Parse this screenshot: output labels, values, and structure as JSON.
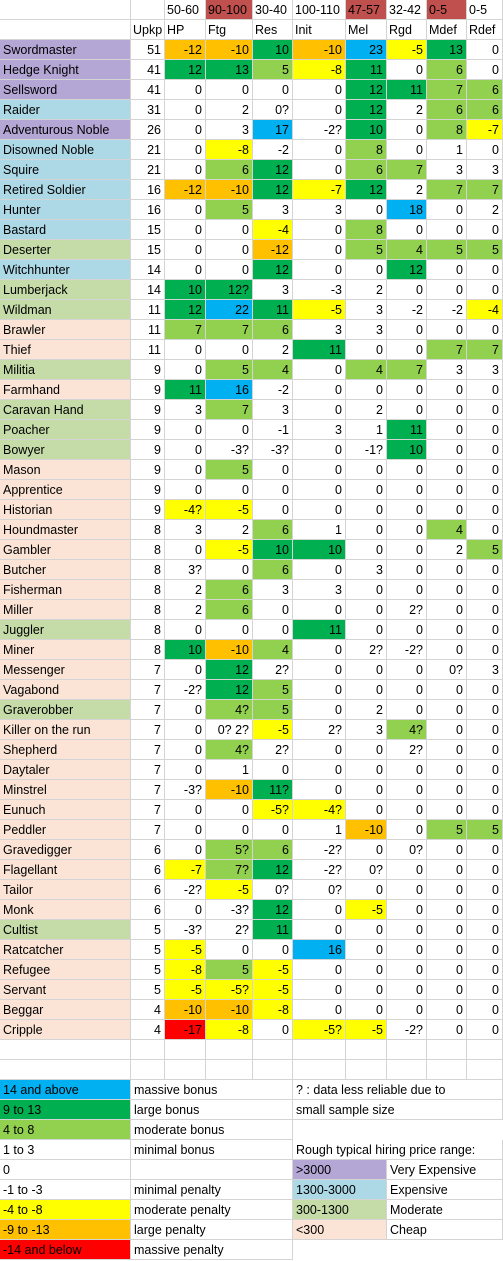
{
  "colors": {
    "purple": "#b4a7d6",
    "blue": "#add8e6",
    "green": "#c5dca9",
    "peach": "#fbe4d5",
    "massive_bonus": "#00b0f0",
    "large_bonus": "#00b050",
    "moderate_bonus": "#92d050",
    "minimal_penalty": "#ffffff",
    "moderate_penalty": "#ffff00",
    "large_penalty": "#ffc000",
    "massive_penalty": "#ff0000",
    "header_red": "#c0504d"
  },
  "ranges": [
    "50-60",
    "90-100",
    "30-40",
    "100-110",
    "47-57",
    "32-42",
    "0-5",
    "0-5"
  ],
  "range_colors": [
    "",
    "header_red",
    "",
    "",
    "header_red",
    "",
    "header_red",
    ""
  ],
  "columns": [
    "Upkp",
    "HP",
    "Ftg",
    "Res",
    "Init",
    "Mel",
    "Rgd",
    "Mdef",
    "Rdef"
  ],
  "rows": [
    {
      "name": "Swordmaster",
      "price": "purple",
      "upkp": "51",
      "vals": [
        "-12",
        "-10",
        "10",
        "-10",
        "23",
        "-5",
        "13",
        "0"
      ]
    },
    {
      "name": "Hedge Knight",
      "price": "purple",
      "upkp": "41",
      "vals": [
        "12",
        "13",
        "5",
        "-8",
        "11",
        "0",
        "6",
        "0"
      ]
    },
    {
      "name": "Sellsword",
      "price": "purple",
      "upkp": "41",
      "vals": [
        "0",
        "0",
        "0",
        "0",
        "12",
        "11",
        "7",
        "6"
      ]
    },
    {
      "name": "Raider",
      "price": "blue",
      "upkp": "31",
      "vals": [
        "0",
        "2",
        "0?",
        "0",
        "12",
        "2",
        "6",
        "6"
      ]
    },
    {
      "name": "Adventurous Noble",
      "price": "purple",
      "upkp": "26",
      "vals": [
        "0",
        "3",
        "17",
        "-2?",
        "10",
        "0",
        "8",
        "-7"
      ]
    },
    {
      "name": "Disowned Noble",
      "price": "blue",
      "upkp": "21",
      "vals": [
        "0",
        "-8",
        "-2",
        "0",
        "8",
        "0",
        "1",
        "0"
      ]
    },
    {
      "name": "Squire",
      "price": "blue",
      "upkp": "21",
      "vals": [
        "0",
        "6",
        "12",
        "0",
        "6",
        "7",
        "3",
        "3"
      ]
    },
    {
      "name": "Retired Soldier",
      "price": "blue",
      "upkp": "16",
      "vals": [
        "-12",
        "-10",
        "12",
        "-7",
        "12",
        "2",
        "7",
        "7"
      ]
    },
    {
      "name": "Hunter",
      "price": "blue",
      "upkp": "16",
      "vals": [
        "0",
        "5",
        "3",
        "3",
        "0",
        "18",
        "0",
        "2"
      ]
    },
    {
      "name": "Bastard",
      "price": "blue",
      "upkp": "15",
      "vals": [
        "0",
        "0",
        "-4",
        "0",
        "8",
        "0",
        "0",
        "0"
      ]
    },
    {
      "name": "Deserter",
      "price": "green",
      "upkp": "15",
      "vals": [
        "0",
        "0",
        "-12",
        "0",
        "5",
        "4",
        "5",
        "5"
      ]
    },
    {
      "name": "Witchhunter",
      "price": "blue",
      "upkp": "14",
      "vals": [
        "0",
        "0",
        "12",
        "0",
        "0",
        "12",
        "0",
        "0"
      ]
    },
    {
      "name": "Lumberjack",
      "price": "green",
      "upkp": "14",
      "vals": [
        "10",
        "12?",
        "3",
        "-3",
        "2",
        "0",
        "0",
        "0"
      ]
    },
    {
      "name": "Wildman",
      "price": "green",
      "upkp": "11",
      "vals": [
        "12",
        "22",
        "11",
        "-5",
        "3",
        "-2",
        "-2",
        "-4"
      ]
    },
    {
      "name": "Brawler",
      "price": "peach",
      "upkp": "11",
      "vals": [
        "7",
        "7",
        "6",
        "3",
        "3",
        "0",
        "0",
        "0"
      ]
    },
    {
      "name": "Thief",
      "price": "peach",
      "upkp": "11",
      "vals": [
        "0",
        "0",
        "2",
        "11",
        "0",
        "0",
        "7",
        "7"
      ]
    },
    {
      "name": "Militia",
      "price": "green",
      "upkp": "9",
      "vals": [
        "0",
        "5",
        "4",
        "0",
        "4",
        "7",
        "3",
        "3"
      ]
    },
    {
      "name": "Farmhand",
      "price": "peach",
      "upkp": "9",
      "vals": [
        "11",
        "16",
        "-2",
        "0",
        "0",
        "0",
        "0",
        "0"
      ]
    },
    {
      "name": "Caravan Hand",
      "price": "green",
      "upkp": "9",
      "vals": [
        "3",
        "7",
        "3",
        "0",
        "2",
        "0",
        "0",
        "0"
      ]
    },
    {
      "name": "Poacher",
      "price": "green",
      "upkp": "9",
      "vals": [
        "0",
        "0",
        "-1",
        "3",
        "1",
        "11",
        "0",
        "0"
      ]
    },
    {
      "name": "Bowyer",
      "price": "green",
      "upkp": "9",
      "vals": [
        "0",
        "-3?",
        "-3?",
        "0",
        "-1?",
        "10",
        "0",
        "0"
      ]
    },
    {
      "name": "Mason",
      "price": "peach",
      "upkp": "9",
      "vals": [
        "0",
        "5",
        "0",
        "0",
        "0",
        "0",
        "0",
        "0"
      ]
    },
    {
      "name": "Apprentice",
      "price": "peach",
      "upkp": "9",
      "vals": [
        "0",
        "0",
        "0",
        "0",
        "0",
        "0",
        "0",
        "0"
      ]
    },
    {
      "name": "Historian",
      "price": "peach",
      "upkp": "9",
      "vals": [
        "-4?",
        "-5",
        "0",
        "0",
        "0",
        "0",
        "0",
        "0"
      ]
    },
    {
      "name": "Houndmaster",
      "price": "peach",
      "upkp": "8",
      "vals": [
        "3",
        "2",
        "6",
        "1",
        "0",
        "0",
        "4",
        "0"
      ]
    },
    {
      "name": "Gambler",
      "price": "peach",
      "upkp": "8",
      "vals": [
        "0",
        "-5",
        "10",
        "10",
        "0",
        "0",
        "2",
        "5"
      ]
    },
    {
      "name": "Butcher",
      "price": "peach",
      "upkp": "8",
      "vals": [
        "3?",
        "0",
        "6",
        "0",
        "3",
        "0",
        "0",
        "0"
      ]
    },
    {
      "name": "Fisherman",
      "price": "peach",
      "upkp": "8",
      "vals": [
        "2",
        "6",
        "3",
        "3",
        "0",
        "0",
        "0",
        "0"
      ]
    },
    {
      "name": "Miller",
      "price": "peach",
      "upkp": "8",
      "vals": [
        "2",
        "6",
        "0",
        "0",
        "0",
        "2?",
        "0",
        "0"
      ]
    },
    {
      "name": "Juggler",
      "price": "green",
      "upkp": "8",
      "vals": [
        "0",
        "0",
        "0",
        "11",
        "0",
        "0",
        "0",
        "0"
      ]
    },
    {
      "name": "Miner",
      "price": "peach",
      "upkp": "8",
      "vals": [
        "10",
        "-10",
        "4",
        "0",
        "2?",
        "-2?",
        "0",
        "0"
      ]
    },
    {
      "name": "Messenger",
      "price": "peach",
      "upkp": "7",
      "vals": [
        "0",
        "12",
        "2?",
        "0",
        "0",
        "0",
        "0?",
        "3"
      ]
    },
    {
      "name": "Vagabond",
      "price": "peach",
      "upkp": "7",
      "vals": [
        "-2?",
        "12",
        "5",
        "0",
        "0",
        "0",
        "0",
        "0"
      ]
    },
    {
      "name": "Graverobber",
      "price": "green",
      "upkp": "7",
      "vals": [
        "0",
        "4?",
        "5",
        "0",
        "2",
        "0",
        "0",
        "0"
      ]
    },
    {
      "name": "Killer on the run",
      "price": "peach",
      "upkp": "7",
      "vals": [
        "0",
        "0? 2?",
        "-5",
        "2?",
        "3",
        "4?",
        "0",
        "0"
      ]
    },
    {
      "name": "Shepherd",
      "price": "peach",
      "upkp": "7",
      "vals": [
        "0",
        "4?",
        "2?",
        "0",
        "0",
        "2?",
        "0",
        "0"
      ]
    },
    {
      "name": "Daytaler",
      "price": "peach",
      "upkp": "7",
      "vals": [
        "0",
        "1",
        "0",
        "0",
        "0",
        "0",
        "0",
        "0"
      ]
    },
    {
      "name": "Minstrel",
      "price": "peach",
      "upkp": "7",
      "vals": [
        "-3?",
        "-10",
        "11?",
        "0",
        "0",
        "0",
        "0",
        "0"
      ]
    },
    {
      "name": "Eunuch",
      "price": "peach",
      "upkp": "7",
      "vals": [
        "0",
        "0",
        "-5?",
        "-4?",
        "0",
        "0",
        "0",
        "0"
      ]
    },
    {
      "name": "Peddler",
      "price": "peach",
      "upkp": "7",
      "vals": [
        "0",
        "0",
        "0",
        "1",
        "-10",
        "0",
        "5",
        "5"
      ]
    },
    {
      "name": "Gravedigger",
      "price": "peach",
      "upkp": "6",
      "vals": [
        "0",
        "5?",
        "6",
        "-2?",
        "0",
        "0?",
        "0",
        "0"
      ]
    },
    {
      "name": "Flagellant",
      "price": "peach",
      "upkp": "6",
      "vals": [
        "-7",
        "7?",
        "12",
        "-2?",
        "0?",
        "0",
        "0",
        "0"
      ]
    },
    {
      "name": "Tailor",
      "price": "peach",
      "upkp": "6",
      "vals": [
        "-2?",
        "-5",
        "0?",
        "0?",
        "0",
        "0",
        "0",
        "0"
      ]
    },
    {
      "name": "Monk",
      "price": "peach",
      "upkp": "6",
      "vals": [
        "0",
        "-3?",
        "12",
        "0",
        "-5",
        "0",
        "0",
        "0"
      ]
    },
    {
      "name": "Cultist",
      "price": "green",
      "upkp": "5",
      "vals": [
        "-3?",
        "2?",
        "11",
        "0",
        "0",
        "0",
        "0",
        "0"
      ]
    },
    {
      "name": "Ratcatcher",
      "price": "peach",
      "upkp": "5",
      "vals": [
        "-5",
        "0",
        "0",
        "16",
        "0",
        "0",
        "0",
        "0"
      ]
    },
    {
      "name": "Refugee",
      "price": "peach",
      "upkp": "5",
      "vals": [
        "-8",
        "5",
        "-5",
        "0",
        "0",
        "0",
        "0",
        "0"
      ]
    },
    {
      "name": "Servant",
      "price": "peach",
      "upkp": "5",
      "vals": [
        "-5",
        "-5?",
        "-5",
        "0",
        "0",
        "0",
        "0",
        "0"
      ]
    },
    {
      "name": "Beggar",
      "price": "peach",
      "upkp": "4",
      "vals": [
        "-10",
        "-10",
        "-8",
        "0",
        "0",
        "0",
        "0",
        "0"
      ]
    },
    {
      "name": "Cripple",
      "price": "peach",
      "upkp": "4",
      "vals": [
        "-17",
        "-8",
        "0",
        "-5?",
        "-5",
        "-2?",
        "0",
        "0"
      ]
    }
  ],
  "legend": {
    "scale": [
      {
        "range": "14 and above",
        "label": "massive bonus",
        "color": "massive_bonus"
      },
      {
        "range": "9 to 13",
        "label": "large bonus",
        "color": "large_bonus"
      },
      {
        "range": "4 to 8",
        "label": "moderate bonus",
        "color": "moderate_bonus"
      },
      {
        "range": "1 to 3",
        "label": "minimal bonus",
        "color": ""
      },
      {
        "range": "0",
        "label": "",
        "color": ""
      },
      {
        "range": "-1 to -3",
        "label": "minimal penalty",
        "color": ""
      },
      {
        "range": "-4 to -8",
        "label": "moderate penalty",
        "color": "moderate_penalty"
      },
      {
        "range": "-9 to -13",
        "label": "large penalty",
        "color": "large_penalty"
      },
      {
        "range": "-14 and below",
        "label": "massive penalty",
        "color": "massive_penalty"
      }
    ],
    "note_line1": "? : data less reliable due to",
    "note_line2": "small sample size",
    "price_title": "Rough typical hiring price range:",
    "price": [
      {
        "range": ">3000",
        "label": "Very Expensive",
        "color": "purple"
      },
      {
        "range": "1300-3000",
        "label": "Expensive",
        "color": "blue"
      },
      {
        "range": "300-1300",
        "label": "Moderate",
        "color": "green"
      },
      {
        "range": "<300",
        "label": "Cheap",
        "color": "peach"
      }
    ]
  }
}
